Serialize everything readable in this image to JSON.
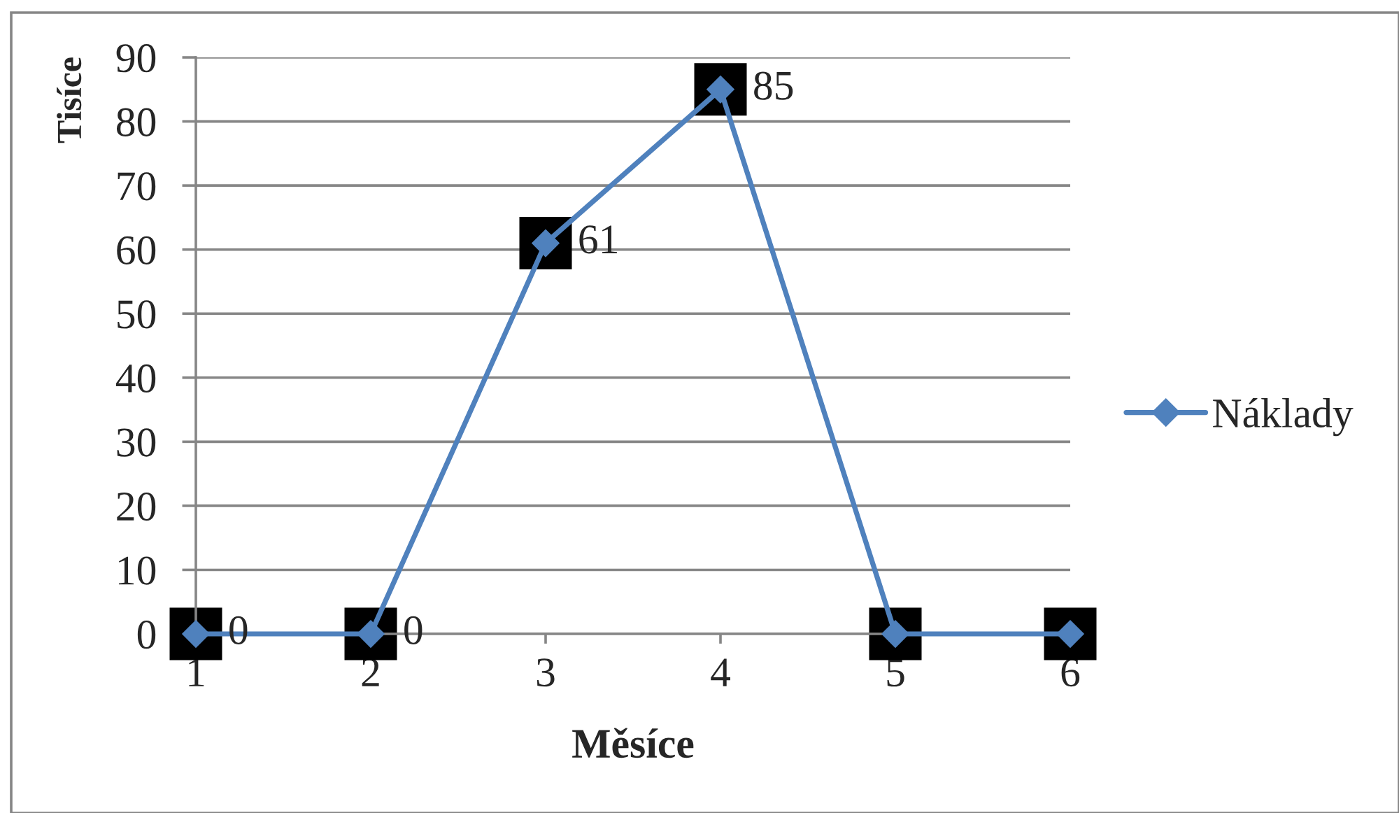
{
  "chart_data": {
    "type": "line",
    "xlabel": "Měsíce",
    "ylabel": "Tisíce",
    "categories": [
      "1",
      "2",
      "3",
      "4",
      "5",
      "6"
    ],
    "series": [
      {
        "name": "Náklady",
        "color": "#4f81bd",
        "values": [
          0,
          0,
          61,
          85,
          0,
          0
        ],
        "value_labels": [
          "0",
          "0",
          "61",
          "85",
          null,
          null
        ]
      }
    ],
    "ylim": [
      0,
      90
    ],
    "yticks": [
      0,
      10,
      20,
      30,
      40,
      50,
      60,
      70,
      80,
      90
    ],
    "grid": "y",
    "legend": "right",
    "marker": "diamond",
    "line_style": "solid"
  }
}
